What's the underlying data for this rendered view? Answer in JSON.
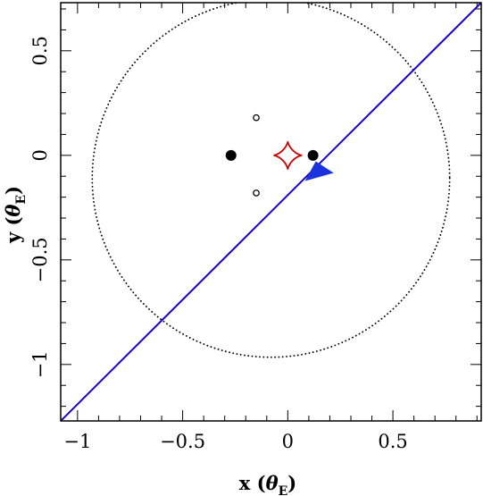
{
  "chart_data": {
    "type": "scatter",
    "xlabel": {
      "main": "x (",
      "symbol": "θ",
      "subscript": "E",
      "close": ")"
    },
    "ylabel": {
      "main": "y (",
      "symbol": "θ",
      "subscript": "E",
      "close": ")"
    },
    "xlim": [
      -1.08,
      0.92
    ],
    "ylim": [
      -1.27,
      0.73
    ],
    "x_ticks": [
      {
        "value": -1,
        "label": "−1"
      },
      {
        "value": -0.5,
        "label": "−0.5"
      },
      {
        "value": 0,
        "label": "0"
      },
      {
        "value": 0.5,
        "label": "0.5"
      }
    ],
    "y_ticks": [
      {
        "value": 0.5,
        "label": "0.5"
      },
      {
        "value": 0,
        "label": "0"
      },
      {
        "value": -0.5,
        "label": "−0.5"
      },
      {
        "value": -1,
        "label": "−1"
      }
    ],
    "x_minor_step": 0.1,
    "y_minor_step": 0.1,
    "grid": false,
    "lenses": [
      {
        "x": -0.27,
        "y": 0.0
      },
      {
        "x": 0.12,
        "y": 0.0
      }
    ],
    "images": [
      {
        "x": -0.15,
        "y": 0.18
      },
      {
        "x": -0.15,
        "y": -0.18
      }
    ],
    "caustic": {
      "center": [
        0.0,
        0.0
      ],
      "half_width": 0.068,
      "half_height": 0.068,
      "color": "#cc0000"
    },
    "einstein_ring": {
      "center": [
        -0.08,
        -0.11
      ],
      "radius": 0.85,
      "style": "dotted",
      "color": "#000000"
    },
    "trajectory": {
      "points": [
        [
          -1.08,
          -1.27
        ],
        [
          0.92,
          0.73
        ]
      ],
      "color": "#1a00cc",
      "arrow_at": [
        0.15,
        -0.08
      ],
      "arrow_color": "#1a33dd"
    }
  }
}
